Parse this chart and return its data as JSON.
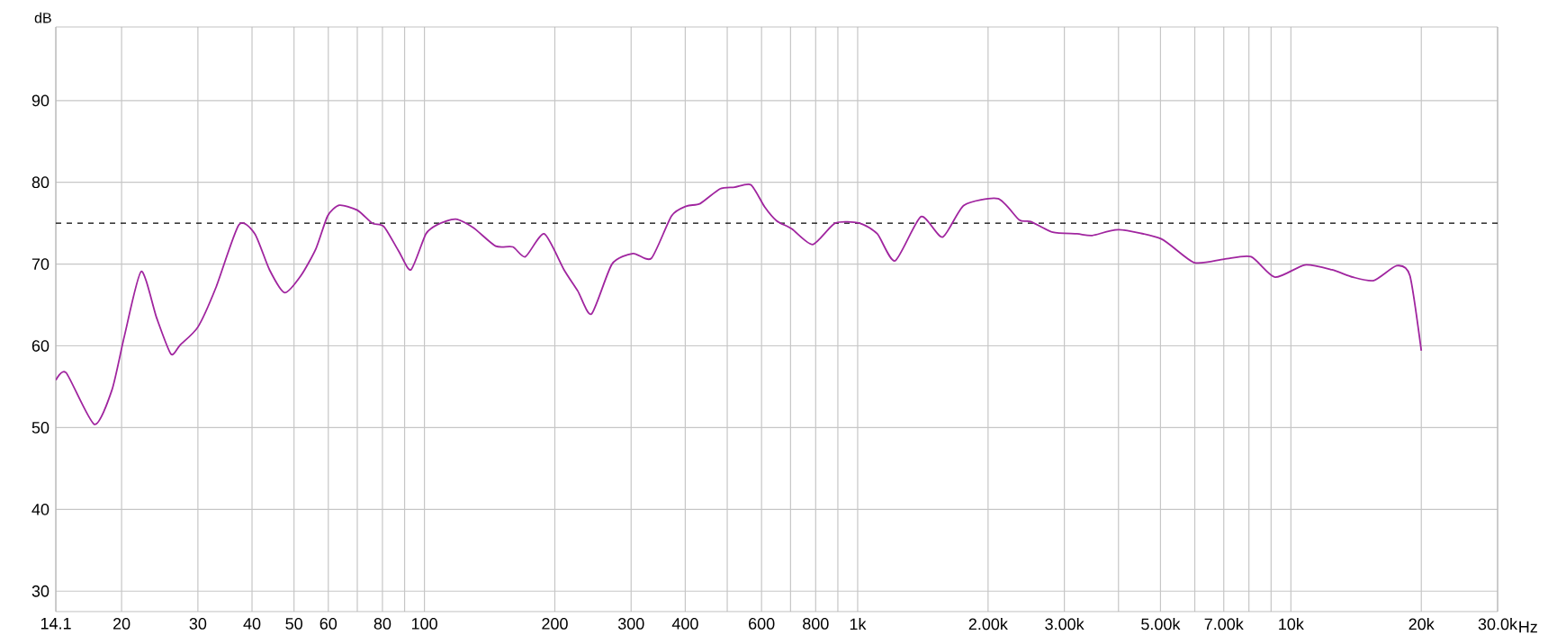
{
  "chart_data": {
    "type": "line",
    "ylabel": "dB",
    "x": [
      14.1,
      14.9,
      17.3,
      19.0,
      20.3,
      22.2,
      24.1,
      26.0,
      27.3,
      30.0,
      33.0,
      37.3,
      40.6,
      43.9,
      47.6,
      51.9,
      56.2,
      59.8,
      63.6,
      70.0,
      75.8,
      80.6,
      87.4,
      93.1,
      100.8,
      107,
      118,
      130,
      146,
      160,
      171,
      189,
      210,
      226,
      243,
      271,
      303,
      334,
      372,
      403,
      433,
      481,
      520,
      567,
      610,
      650,
      705,
      788,
      887,
      1010,
      1110,
      1220,
      1400,
      1570,
      1760,
      2110,
      2360,
      2510,
      2820,
      3210,
      3480,
      4010,
      5010,
      5970,
      7010,
      8090,
      9190,
      10770,
      12440,
      13910,
      15540,
      17550,
      18820,
      20000
    ],
    "series": [
      {
        "color": "#a0259f",
        "values": [
          55.8,
          56.7,
          50.4,
          54.6,
          61.2,
          69.1,
          63.4,
          59.0,
          60.1,
          62.3,
          67.1,
          74.8,
          73.7,
          69.3,
          66.5,
          68.6,
          71.9,
          75.9,
          77.2,
          76.6,
          75.0,
          74.6,
          71.5,
          69.3,
          73.7,
          74.8,
          75.5,
          74.4,
          72.2,
          72.1,
          70.9,
          73.7,
          69.3,
          66.7,
          63.9,
          70.0,
          71.3,
          70.7,
          75.9,
          77.1,
          77.4,
          79.2,
          79.4,
          79.7,
          77.0,
          75.3,
          74.3,
          72.4,
          75.0,
          75.0,
          73.7,
          70.4,
          75.8,
          73.3,
          77.2,
          78.0,
          75.4,
          75.2,
          73.9,
          73.7,
          73.5,
          74.2,
          73.1,
          70.2,
          70.6,
          70.9,
          68.4,
          69.9,
          69.3,
          68.4,
          68.0,
          69.8,
          68.6,
          59.4
        ]
      }
    ],
    "log": "x",
    "grid": true,
    "line_style": "solid",
    "xlim": [
      14.1,
      30000
    ],
    "ylim": [
      27.5,
      99
    ],
    "xticks": [
      14.1,
      20,
      30,
      40,
      50,
      60,
      {
        "value": 70,
        "label": null
      },
      80,
      {
        "value": 90,
        "label": null
      },
      100,
      200,
      300,
      400,
      {
        "value": 500,
        "label": null
      },
      600,
      {
        "value": 700,
        "label": null
      },
      800,
      {
        "value": 900,
        "label": null
      },
      {
        "value": 1000,
        "label": "1k"
      },
      {
        "value": 2000,
        "label": "2.00k"
      },
      {
        "value": 3000,
        "label": "3.00k"
      },
      {
        "value": 4000,
        "label": null
      },
      {
        "value": 5000,
        "label": "5.00k"
      },
      {
        "value": 6000,
        "label": null
      },
      {
        "value": 7000,
        "label": "7.00k"
      },
      {
        "value": 8000,
        "label": null
      },
      {
        "value": 9000,
        "label": null
      },
      {
        "value": 10000,
        "label": "10k"
      },
      {
        "value": 20000,
        "label": "20k"
      },
      {
        "value": 30000,
        "label": "30.0k"
      }
    ],
    "xlabel": "Hz",
    "yticks": [
      30,
      40,
      50,
      60,
      70,
      80,
      90
    ],
    "ref_lines": [
      {
        "axis": "y",
        "value": 75,
        "color": "#000000",
        "line_style": "dashed"
      }
    ]
  }
}
